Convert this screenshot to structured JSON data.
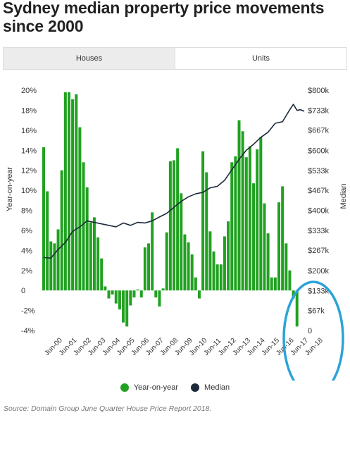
{
  "title": "Sydney median property price movements since 2000",
  "tabs": [
    {
      "label": "Houses",
      "active": false
    },
    {
      "label": "Units",
      "active": true
    }
  ],
  "legend": [
    {
      "label": "Year-on-year",
      "color": "#21a121"
    },
    {
      "label": "Median",
      "color": "#1c2a3a"
    }
  ],
  "source": "Source: Domain Group June Quarter House Price Report 2018.",
  "annotation": {
    "shape": "ellipse",
    "color": "#2ba3d8"
  },
  "chart_data": {
    "type": "bar+line",
    "xlabel": "",
    "ylabel_left": "Year-on-year",
    "ylabel_right": "Median",
    "ylim_left": [
      -4,
      20
    ],
    "ylim_right": [
      0,
      800000
    ],
    "left_ticks": [
      {
        "v": 20,
        "t": "20%"
      },
      {
        "v": 18,
        "t": "18%"
      },
      {
        "v": 16,
        "t": "16%"
      },
      {
        "v": 14,
        "t": "14%"
      },
      {
        "v": 12,
        "t": "12%"
      },
      {
        "v": 10,
        "t": "10%"
      },
      {
        "v": 8,
        "t": "8%"
      },
      {
        "v": 6,
        "t": "6%"
      },
      {
        "v": 4,
        "t": "4%"
      },
      {
        "v": 2,
        "t": "2%"
      },
      {
        "v": 0,
        "t": "0"
      },
      {
        "v": -2,
        "t": "-2%"
      },
      {
        "v": -4,
        "t": "-4%"
      }
    ],
    "right_ticks": [
      {
        "v": 800000,
        "t": "$800k"
      },
      {
        "v": 733000,
        "t": "$733k"
      },
      {
        "v": 667000,
        "t": "$667k"
      },
      {
        "v": 600000,
        "t": "$600k"
      },
      {
        "v": 533000,
        "t": "$533k"
      },
      {
        "v": 467000,
        "t": "$467k"
      },
      {
        "v": 400000,
        "t": "$400k"
      },
      {
        "v": 333000,
        "t": "$333k"
      },
      {
        "v": 267000,
        "t": "$267k"
      },
      {
        "v": 200000,
        "t": "$200k"
      },
      {
        "v": 133000,
        "t": "$133k"
      },
      {
        "v": 67000,
        "t": "$67k"
      },
      {
        "v": 0,
        "t": "0"
      }
    ],
    "x_ticks": [
      {
        "i": 0,
        "t": "Jun-00"
      },
      {
        "i": 8,
        "t": "Jun-01"
      },
      {
        "i": 16,
        "t": "Jun-02"
      },
      {
        "i": 24,
        "t": "Jun-03"
      },
      {
        "i": 32,
        "t": "Jun-04"
      },
      {
        "i": 40,
        "t": "Jun-05"
      },
      {
        "i": 48,
        "t": "Jun-06"
      },
      {
        "i": 56,
        "t": "Jun-07"
      },
      {
        "i": 64,
        "t": "Jun-08"
      },
      {
        "i": 72,
        "t": "Jun-09"
      },
      {
        "i": 80,
        "t": "Jun-10"
      },
      {
        "i": 88,
        "t": "Jun-11"
      },
      {
        "i": 96,
        "t": "Jun-12"
      },
      {
        "i": 104,
        "t": "Jun-13"
      },
      {
        "i": 112,
        "t": "Jun-14"
      },
      {
        "i": 120,
        "t": "Jun-15"
      },
      {
        "i": 128,
        "t": "Jun-16"
      },
      {
        "i": 136,
        "t": "Jun-17"
      },
      {
        "i": 144,
        "t": "Jun-18"
      }
    ],
    "series": [
      {
        "name": "Year-on-year",
        "kind": "bar",
        "color": "#21a121",
        "values": [
          {
            "i": 0,
            "v": 14.3
          },
          {
            "i": 1,
            "v": 9.9
          },
          {
            "i": 2,
            "v": 4.9
          },
          {
            "i": 3,
            "v": 4.7
          },
          {
            "i": 4,
            "v": 6.1
          },
          {
            "i": 5,
            "v": 12.0
          },
          {
            "i": 6,
            "v": 19.8
          },
          {
            "i": 7,
            "v": 19.8
          },
          {
            "i": 8,
            "v": 19.1
          },
          {
            "i": 9,
            "v": 19.6
          },
          {
            "i": 10,
            "v": 16.3
          },
          {
            "i": 11,
            "v": 12.8
          },
          {
            "i": 12,
            "v": 10.3
          },
          {
            "i": 13,
            "v": 6.8
          },
          {
            "i": 14,
            "v": 7.3
          },
          {
            "i": 15,
            "v": 5.3
          },
          {
            "i": 16,
            "v": 3.2
          },
          {
            "i": 17,
            "v": 0.4
          },
          {
            "i": 18,
            "v": -0.8
          },
          {
            "i": 19,
            "v": -0.4
          },
          {
            "i": 20,
            "v": -1.3
          },
          {
            "i": 21,
            "v": -1.9
          },
          {
            "i": 22,
            "v": -3.2
          },
          {
            "i": 23,
            "v": -3.6
          },
          {
            "i": 24,
            "v": -1.5
          },
          {
            "i": 25,
            "v": -0.7
          },
          {
            "i": 26,
            "v": 0.1
          },
          {
            "i": 27,
            "v": -0.7
          },
          {
            "i": 28,
            "v": 4.3
          },
          {
            "i": 29,
            "v": 4.7
          },
          {
            "i": 30,
            "v": 7.8
          },
          {
            "i": 31,
            "v": -0.7
          },
          {
            "i": 32,
            "v": -1.6
          },
          {
            "i": 33,
            "v": 0.2
          },
          {
            "i": 34,
            "v": 5.8
          },
          {
            "i": 35,
            "v": 12.9
          },
          {
            "i": 36,
            "v": 13.0
          },
          {
            "i": 37,
            "v": 14.2
          },
          {
            "i": 38,
            "v": 9.7
          },
          {
            "i": 39,
            "v": 5.6
          },
          {
            "i": 40,
            "v": 4.8
          },
          {
            "i": 41,
            "v": 3.6
          },
          {
            "i": 42,
            "v": 1.3
          },
          {
            "i": 43,
            "v": -0.8
          },
          {
            "i": 44,
            "v": 13.9
          },
          {
            "i": 45,
            "v": 11.8
          },
          {
            "i": 46,
            "v": 5.9
          },
          {
            "i": 47,
            "v": 3.9
          },
          {
            "i": 48,
            "v": 2.6
          },
          {
            "i": 49,
            "v": 2.6
          },
          {
            "i": 50,
            "v": 5.4
          },
          {
            "i": 51,
            "v": 6.9
          },
          {
            "i": 52,
            "v": 12.8
          },
          {
            "i": 53,
            "v": 13.4
          },
          {
            "i": 54,
            "v": 17.0
          },
          {
            "i": 55,
            "v": 15.9
          },
          {
            "i": 56,
            "v": 13.3
          },
          {
            "i": 57,
            "v": 14.4
          },
          {
            "i": 58,
            "v": 10.7
          },
          {
            "i": 59,
            "v": 14.1
          },
          {
            "i": 60,
            "v": 15.3
          },
          {
            "i": 61,
            "v": 8.7
          },
          {
            "i": 62,
            "v": 5.7
          },
          {
            "i": 63,
            "v": 1.3
          },
          {
            "i": 64,
            "v": 1.3
          },
          {
            "i": 65,
            "v": 8.8
          },
          {
            "i": 66,
            "v": 10.4
          },
          {
            "i": 67,
            "v": 4.7
          },
          {
            "i": 68,
            "v": 2.0
          },
          {
            "i": 69,
            "v": -0.8
          },
          {
            "i": 70,
            "v": -3.6
          }
        ]
      },
      {
        "name": "Median",
        "kind": "line",
        "color": "#1c2a3a",
        "points": [
          {
            "i": 0,
            "v": 243000
          },
          {
            "i": 4,
            "v": 241000
          },
          {
            "i": 8,
            "v": 270000
          },
          {
            "i": 12,
            "v": 293000
          },
          {
            "i": 16,
            "v": 330000
          },
          {
            "i": 20,
            "v": 345000
          },
          {
            "i": 24,
            "v": 365000
          },
          {
            "i": 28,
            "v": 360000
          },
          {
            "i": 32,
            "v": 355000
          },
          {
            "i": 36,
            "v": 350000
          },
          {
            "i": 40,
            "v": 345000
          },
          {
            "i": 44,
            "v": 358000
          },
          {
            "i": 48,
            "v": 350000
          },
          {
            "i": 52,
            "v": 360000
          },
          {
            "i": 56,
            "v": 358000
          },
          {
            "i": 60,
            "v": 365000
          },
          {
            "i": 64,
            "v": 378000
          },
          {
            "i": 68,
            "v": 390000
          },
          {
            "i": 72,
            "v": 410000
          },
          {
            "i": 76,
            "v": 430000
          },
          {
            "i": 80,
            "v": 445000
          },
          {
            "i": 84,
            "v": 455000
          },
          {
            "i": 88,
            "v": 460000
          },
          {
            "i": 92,
            "v": 475000
          },
          {
            "i": 96,
            "v": 480000
          },
          {
            "i": 100,
            "v": 500000
          },
          {
            "i": 104,
            "v": 535000
          },
          {
            "i": 108,
            "v": 570000
          },
          {
            "i": 112,
            "v": 600000
          },
          {
            "i": 116,
            "v": 620000
          },
          {
            "i": 120,
            "v": 643000
          },
          {
            "i": 124,
            "v": 660000
          },
          {
            "i": 128,
            "v": 690000
          },
          {
            "i": 132,
            "v": 695000
          },
          {
            "i": 136,
            "v": 735000
          },
          {
            "i": 138,
            "v": 753000
          },
          {
            "i": 140,
            "v": 733000
          },
          {
            "i": 142,
            "v": 735000
          },
          {
            "i": 144,
            "v": 730000
          }
        ]
      }
    ],
    "grid": false,
    "legend_position": "bottom-center"
  }
}
